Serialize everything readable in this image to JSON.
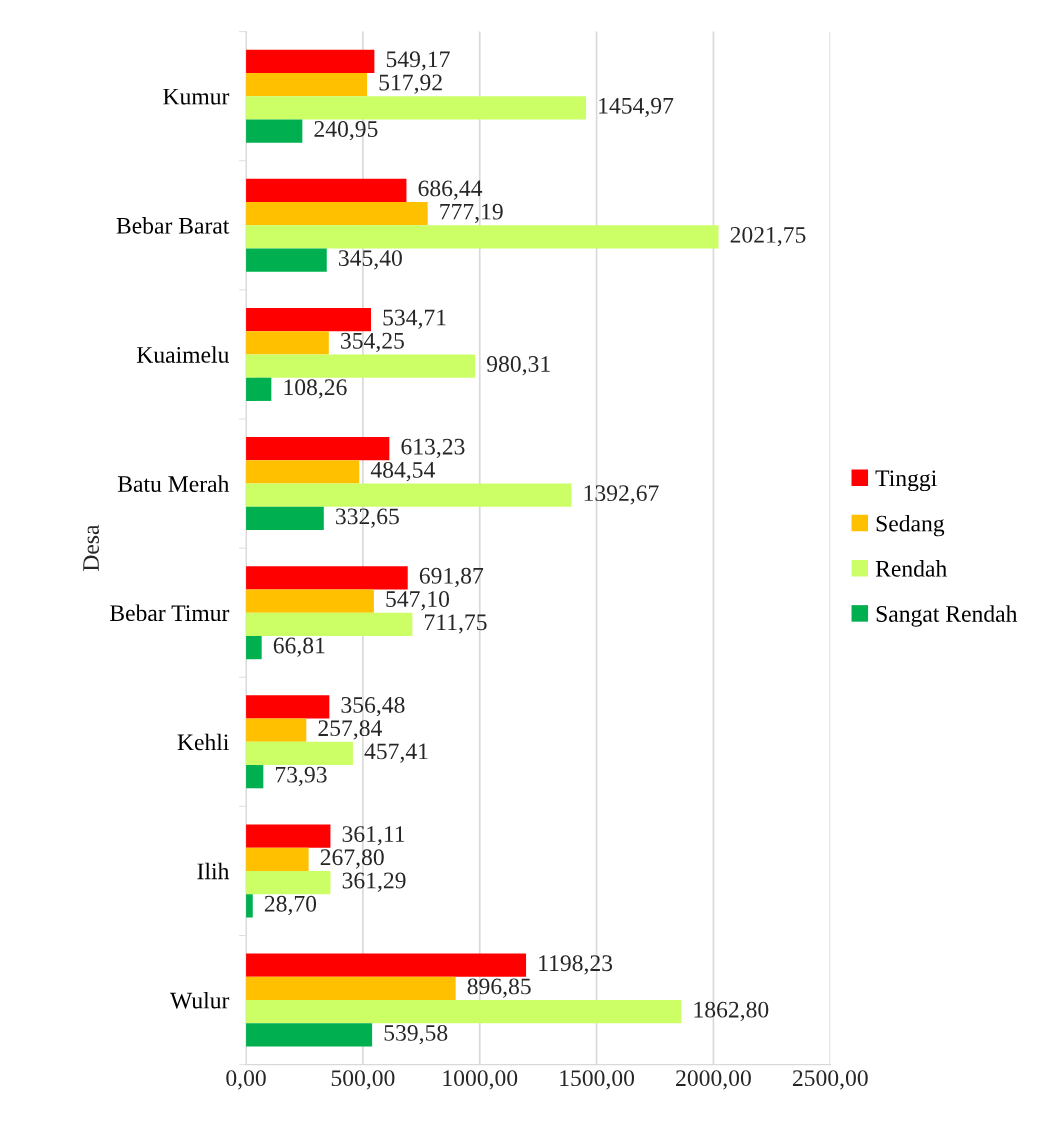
{
  "chart_data": {
    "type": "bar",
    "orientation": "horizontal",
    "ylabel": "Desa",
    "categories": [
      "Kumur",
      "Bebar Barat",
      "Kuaimelu",
      "Batu Merah",
      "Bebar Timur",
      "Kehli",
      "Ilih",
      "Wulur"
    ],
    "series": [
      {
        "name": "Tinggi",
        "color": "#ff0000",
        "values": [
          549.17,
          686.44,
          534.71,
          613.23,
          691.87,
          356.48,
          361.11,
          1198.23
        ],
        "value_labels": [
          "549,17",
          "686,44",
          "534,71",
          "613,23",
          "691,87",
          "356,48",
          "361,11",
          "1198,23"
        ]
      },
      {
        "name": "Sedang",
        "color": "#ffc000",
        "values": [
          517.92,
          777.19,
          354.25,
          484.54,
          547.1,
          257.84,
          267.8,
          896.85
        ],
        "value_labels": [
          "517,92",
          "777,19",
          "354,25",
          "484,54",
          "547,10",
          "257,84",
          "267,80",
          "896,85"
        ]
      },
      {
        "name": "Rendah",
        "color": "#ccff66",
        "values": [
          1454.97,
          2021.75,
          980.31,
          1392.67,
          711.75,
          457.41,
          361.29,
          1862.8
        ],
        "value_labels": [
          "1454,97",
          "2021,75",
          "980,31",
          "1392,67",
          "711,75",
          "457,41",
          "361,29",
          "1862,80"
        ]
      },
      {
        "name": "Sangat Rendah",
        "color": "#00b050",
        "values": [
          240.95,
          345.4,
          108.26,
          332.65,
          66.81,
          73.93,
          28.7,
          539.58
        ],
        "value_labels": [
          "240,95",
          "345,40",
          "108,26",
          "332,65",
          "66,81",
          "73,93",
          "28,70",
          "539,58"
        ]
      }
    ],
    "xlim": [
      0,
      2500
    ],
    "xticks": [
      {
        "value": 0,
        "label": "0,00"
      },
      {
        "value": 500,
        "label": "500,00"
      },
      {
        "value": 1000,
        "label": "1000,00"
      },
      {
        "value": 1500,
        "label": "1500,00"
      },
      {
        "value": 2000,
        "label": "2000,00"
      },
      {
        "value": 2500,
        "label": "2500,00"
      }
    ],
    "grid": "x",
    "legend": "right"
  }
}
